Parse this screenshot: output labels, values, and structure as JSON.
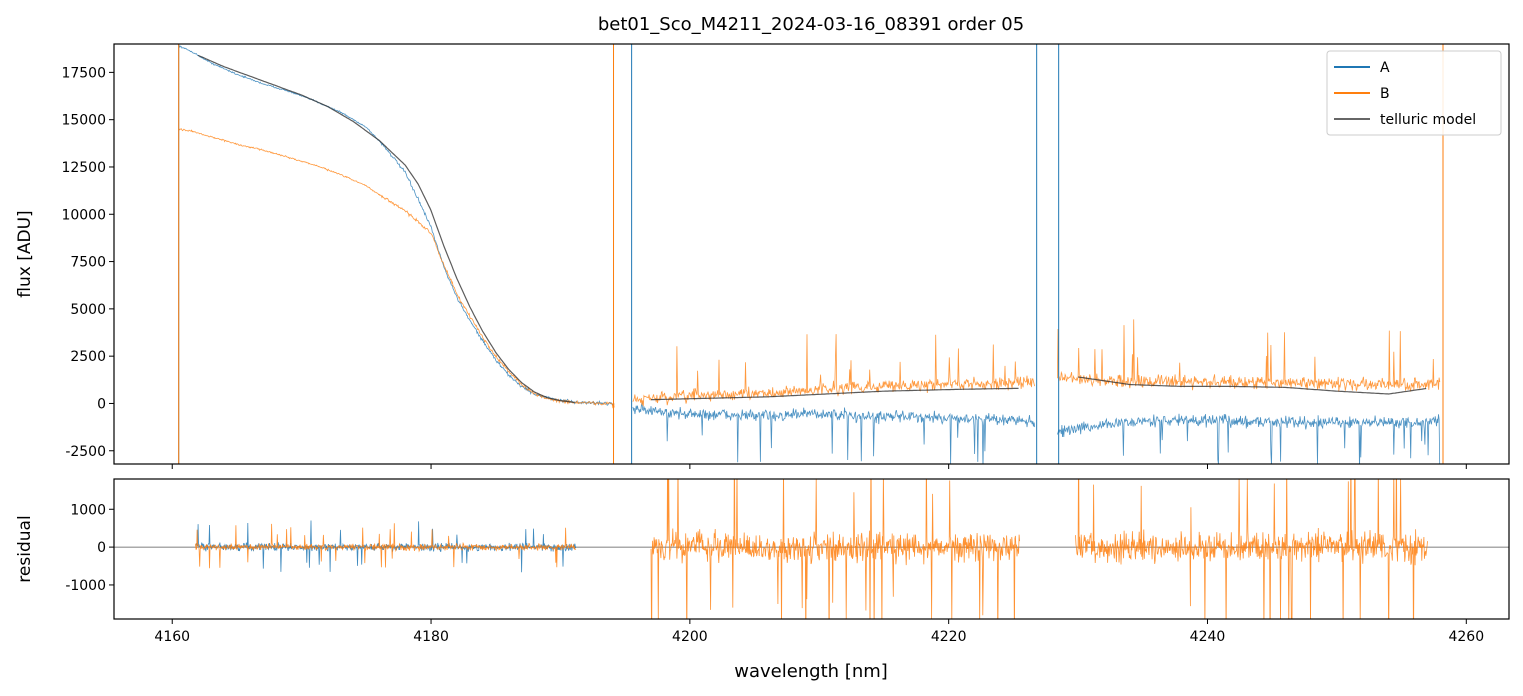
{
  "figure": {
    "title": "bet01_Sco_M4211_2024-03-16_08391  order 05",
    "colors": {
      "A": "#1f77b4",
      "B": "#ff7f0e",
      "model": "#333333",
      "zero_line": "#555555"
    }
  },
  "chart_data": [
    {
      "type": "line",
      "panel": "flux",
      "title": "bet01_Sco_M4211_2024-03-16_08391  order 05",
      "xlabel": "",
      "ylabel": "flux [ADU]",
      "xlim": [
        4155.5,
        4263.3
      ],
      "ylim": [
        -3200,
        19000
      ],
      "yticks": [
        -2500,
        0,
        2500,
        5000,
        7500,
        10000,
        12500,
        15000,
        17500
      ],
      "xticks": [
        4160,
        4180,
        4200,
        4220,
        4240,
        4260
      ],
      "grid": false,
      "legend": {
        "position": "top-right",
        "entries": [
          "A",
          "B",
          "telluric model"
        ]
      },
      "series": [
        {
          "name": "A",
          "x": [
            4160.5,
            4161.5,
            4163,
            4165,
            4167,
            4169,
            4171,
            4173,
            4175,
            4176.5,
            4178,
            4179,
            4180,
            4181,
            4182,
            4183,
            4184,
            4185,
            4186,
            4187,
            4188,
            4189,
            4190,
            4191,
            4192,
            4193,
            4194,
            4195.5,
            4198,
            4202,
            4206,
            4210,
            4214,
            4218,
            4222,
            4226,
            4228.5,
            4232,
            4236,
            4240,
            4244,
            4248,
            4252,
            4256,
            4258
          ],
          "values": [
            18900,
            18600,
            18000,
            17400,
            16900,
            16500,
            16000,
            15400,
            14600,
            13500,
            12200,
            10800,
            9300,
            7200,
            5600,
            4400,
            3300,
            2300,
            1500,
            900,
            500,
            300,
            150,
            80,
            40,
            20,
            0,
            -200,
            -500,
            -600,
            -650,
            -550,
            -700,
            -700,
            -800,
            -900,
            -1500,
            -1100,
            -900,
            -900,
            -950,
            -1000,
            -1000,
            -1050,
            -900
          ]
        },
        {
          "name": "B",
          "x": [
            4160.5,
            4161.5,
            4163,
            4165,
            4167,
            4169,
            4171,
            4173,
            4175,
            4176.5,
            4178,
            4179,
            4180,
            4181,
            4182,
            4183,
            4184,
            4185,
            4186,
            4187,
            4188,
            4189,
            4190,
            4191,
            4192,
            4193,
            4194,
            4195.5,
            4198,
            4202,
            4206,
            4210,
            4214,
            4218,
            4222,
            4226,
            4228.5,
            4232,
            4236,
            4240,
            4244,
            4248,
            4252,
            4256,
            4258
          ],
          "values": [
            14500,
            14400,
            14100,
            13700,
            13400,
            13000,
            12600,
            12100,
            11500,
            10800,
            10200,
            9600,
            9000,
            7300,
            5800,
            4600,
            3500,
            2500,
            1700,
            1000,
            500,
            250,
            120,
            60,
            30,
            10,
            0,
            200,
            300,
            450,
            550,
            700,
            900,
            1000,
            1050,
            1100,
            1300,
            1200,
            1150,
            1150,
            1100,
            1100,
            1000,
            1000,
            1100
          ]
        },
        {
          "name": "telluric model",
          "x": [
            4162,
            4164,
            4166,
            4168,
            4170,
            4172,
            4174,
            4176,
            4178,
            4179,
            4180,
            4181,
            4182,
            4183,
            4184,
            4185,
            4186,
            4187,
            4188,
            4189,
            4190,
            4191,
            4197,
            4200,
            4203,
            4206,
            4209,
            4212,
            4215,
            4218,
            4221,
            4225.5,
            4230,
            4234,
            4238,
            4242,
            4246,
            4250,
            4254,
            4257
          ],
          "values": [
            18400,
            17800,
            17300,
            16800,
            16300,
            15700,
            14900,
            13900,
            12600,
            11600,
            10200,
            8300,
            6600,
            5100,
            3800,
            2700,
            1800,
            1100,
            600,
            300,
            150,
            60,
            200,
            250,
            300,
            350,
            450,
            550,
            650,
            700,
            750,
            800,
            1400,
            1000,
            900,
            900,
            850,
            650,
            500,
            800
          ]
        }
      ]
    },
    {
      "type": "line",
      "panel": "residual",
      "xlabel": "wavelength [nm]",
      "ylabel": "residual",
      "xlim": [
        4155.5,
        4263.3
      ],
      "ylim": [
        -1900,
        1800
      ],
      "yticks": [
        -1000,
        0,
        1000
      ],
      "xticks": [
        4160,
        4180,
        4200,
        4220,
        4240,
        4260
      ],
      "grid": false,
      "reference_line": 0,
      "segments": [
        {
          "series": "A",
          "x_range": [
            4161.8,
            4191.2
          ],
          "level": 0,
          "amplitude": 350
        },
        {
          "series": "B",
          "x_range": [
            4161.8,
            4191.2
          ],
          "level": 0,
          "amplitude": 300
        },
        {
          "series": "B",
          "x_range": [
            4197,
            4225.5
          ],
          "level": 0,
          "amplitude": 1400
        },
        {
          "series": "B",
          "x_range": [
            4229.8,
            4257
          ],
          "level": 0,
          "amplitude": 1400
        }
      ]
    }
  ]
}
